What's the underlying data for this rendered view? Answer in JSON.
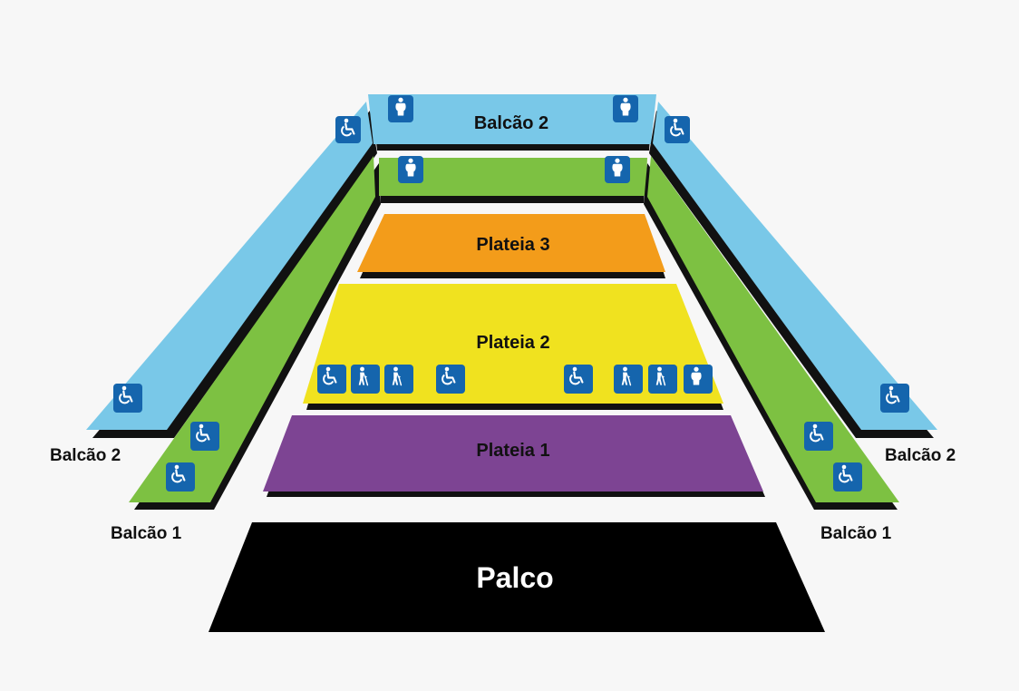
{
  "colors": {
    "background": "#f7f7f7",
    "balcao2": "#79c8e8",
    "balcao1": "#7dc142",
    "plateia3": "#f39c1a",
    "plateia2": "#f0e21f",
    "plateia1": "#7d4493",
    "palco": "#000000",
    "icon_fill": "#1565ad",
    "icon_symbol": "#ffffff"
  },
  "sections": {
    "balcao2_top": "Balcão 2",
    "plateia3": "Plateia 3",
    "plateia2": "Plateia 2",
    "plateia1": "Plateia 1",
    "palco": "Palco"
  },
  "side_labels": {
    "left_balcao2": "Balcão 2",
    "left_balcao1": "Balcão 1",
    "right_balcao2": "Balcão 2",
    "right_balcao1": "Balcão 1"
  },
  "accessibility_icons": {
    "balcao2_top": [
      "obese-person-icon",
      "obese-person-icon"
    ],
    "balcao1_top": [
      "obese-person-icon",
      "obese-person-icon"
    ],
    "balcao2_left": [
      "wheelchair-icon",
      "wheelchair-icon"
    ],
    "balcao2_right": [
      "wheelchair-icon",
      "wheelchair-icon"
    ],
    "balcao1_left": [
      "wheelchair-icon",
      "wheelchair-icon"
    ],
    "balcao1_right": [
      "wheelchair-icon",
      "wheelchair-icon"
    ],
    "plateia2": [
      "wheelchair-icon",
      "elderly-person-icon",
      "elderly-person-icon",
      "wheelchair-icon",
      "wheelchair-icon",
      "elderly-person-icon",
      "elderly-person-icon",
      "obese-person-icon"
    ]
  }
}
